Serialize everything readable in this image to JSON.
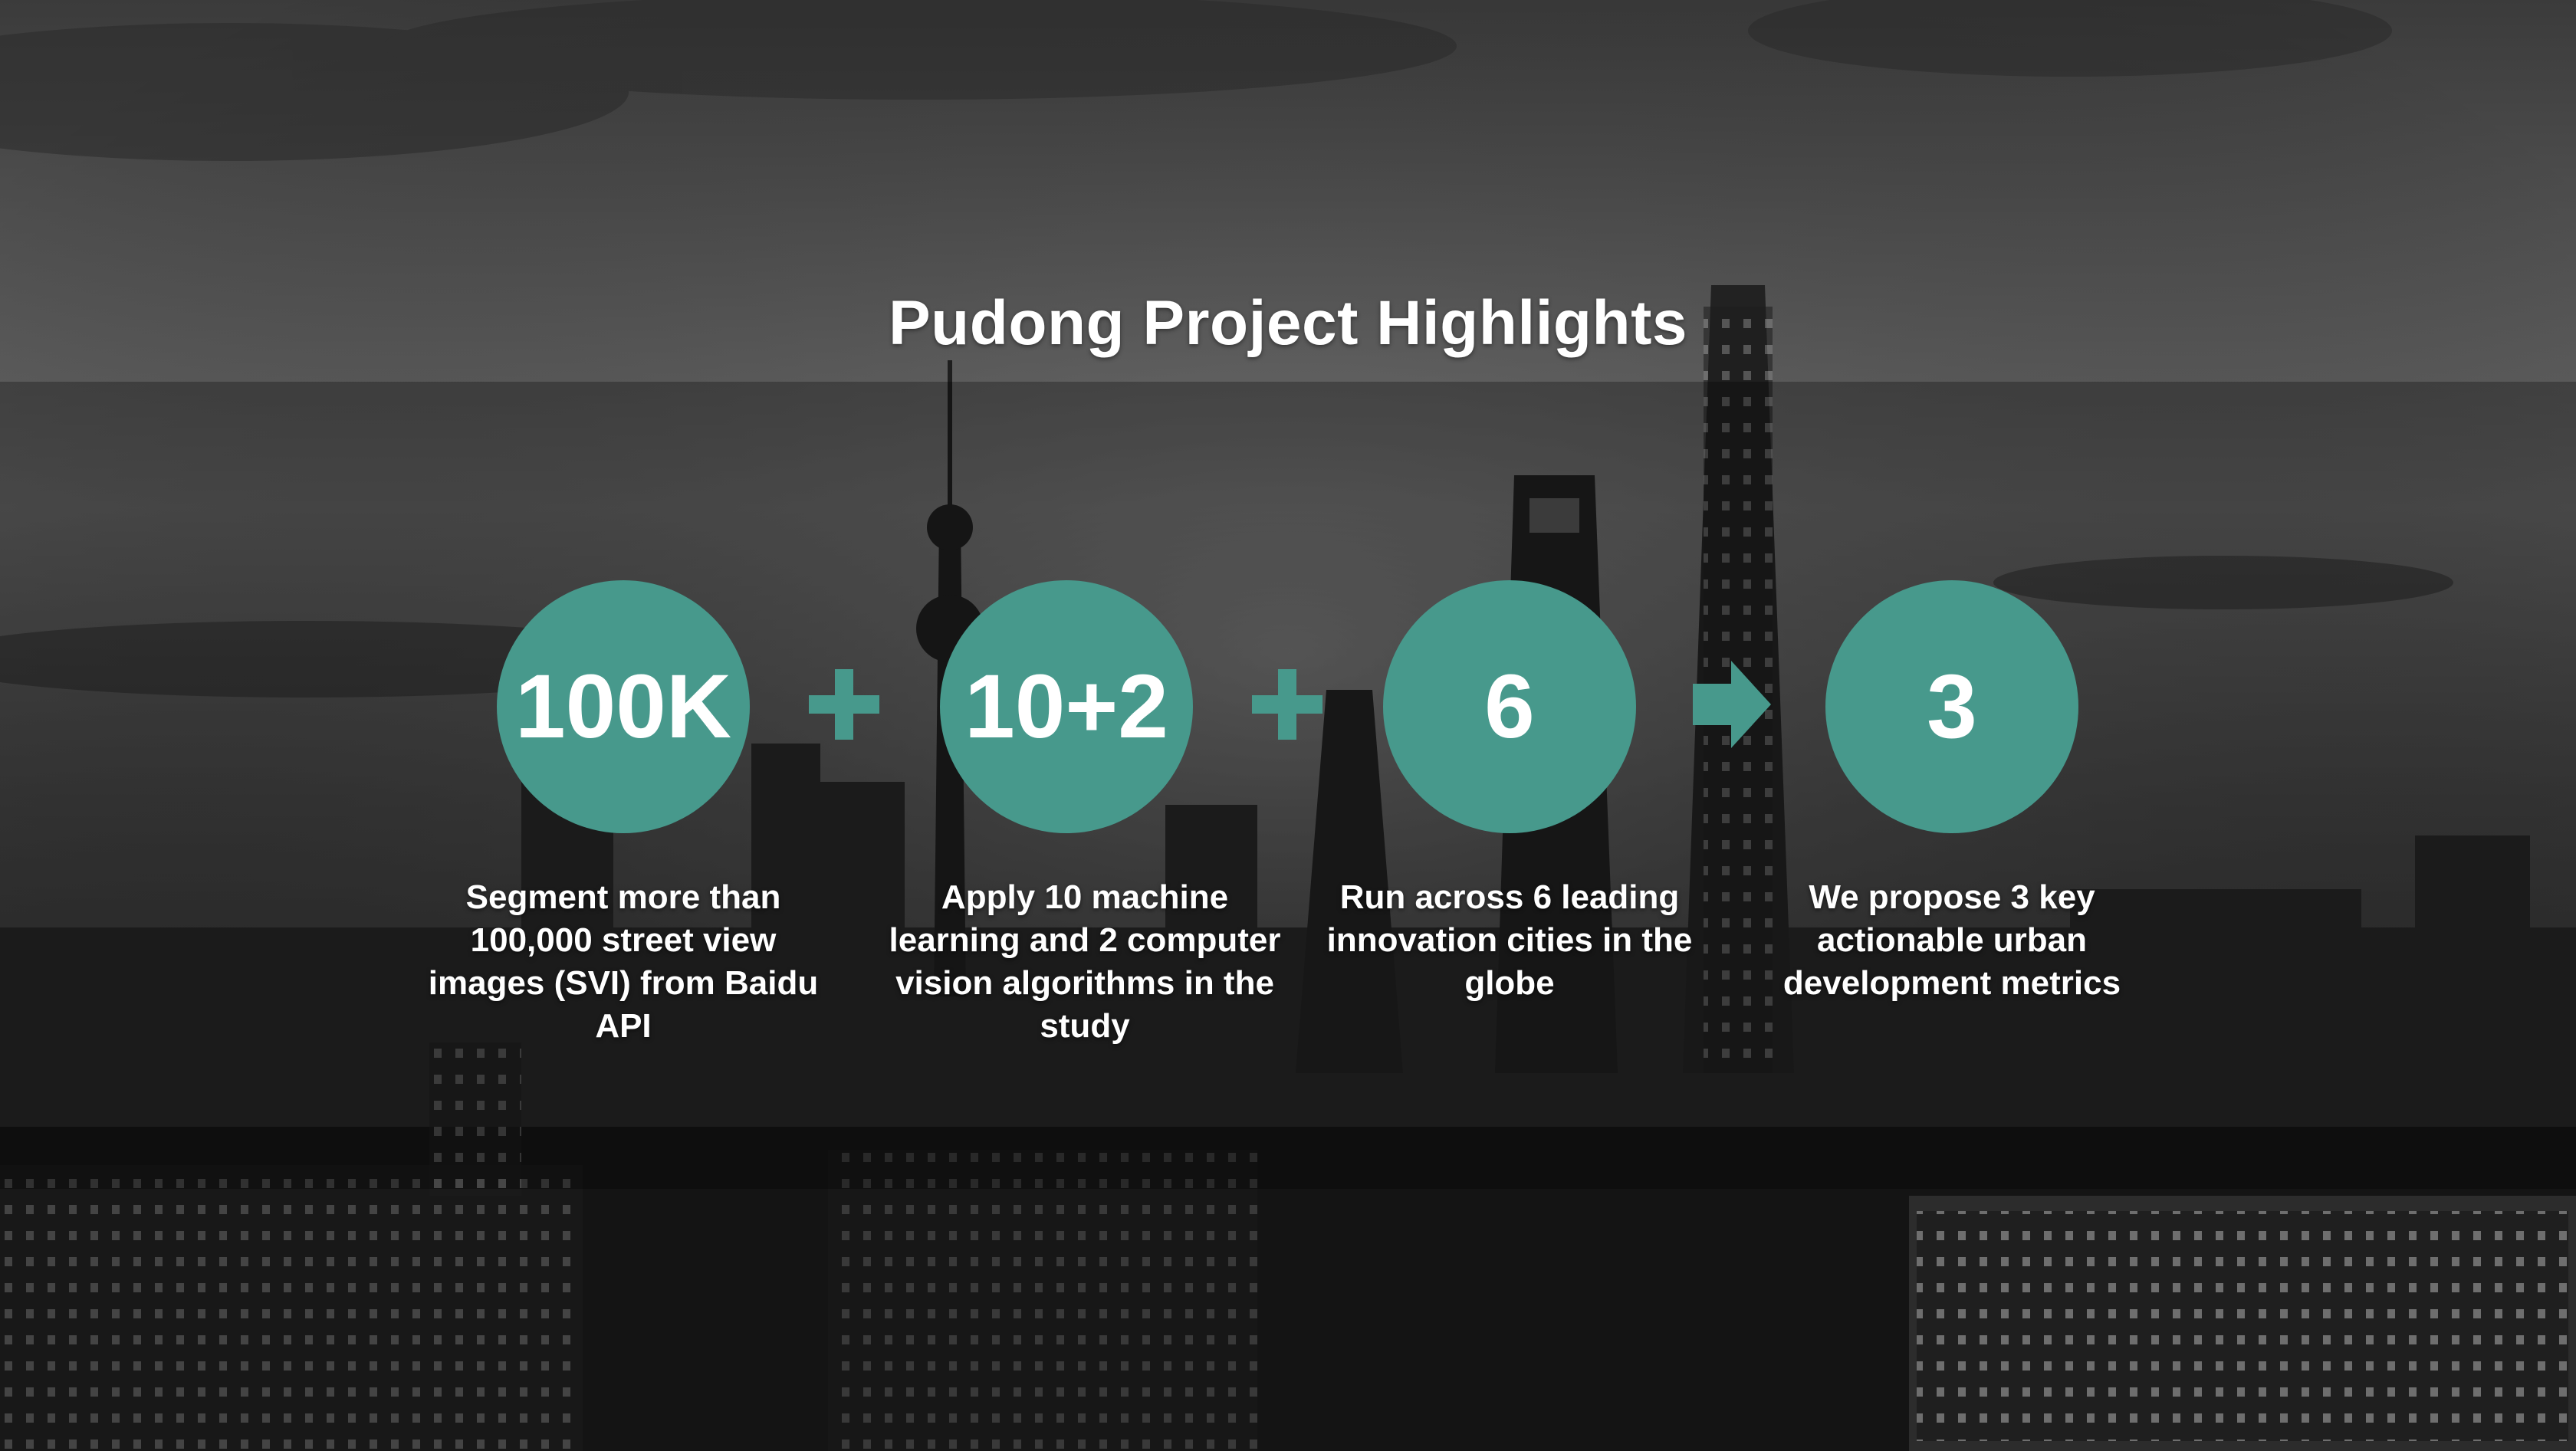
{
  "slide": {
    "title": "Pudong Project Highlights",
    "accent_color": "#47998c",
    "background": "city-skyline-night-photo-grayscale",
    "stats": [
      {
        "value": "100K",
        "caption": "Segment more than 100,000 street view images (SVI) from Baidu API"
      },
      {
        "value": "10+2",
        "caption": "Apply 10 machine learning and 2 computer vision algorithms in the study"
      },
      {
        "value": "6",
        "caption": "Run across 6 leading innovation cities in the globe"
      },
      {
        "value": "3",
        "caption": "We propose 3 key actionable urban development metrics"
      }
    ],
    "operators": [
      {
        "icon": "plus-icon"
      },
      {
        "icon": "plus-icon"
      },
      {
        "icon": "arrow-right-icon"
      }
    ]
  }
}
